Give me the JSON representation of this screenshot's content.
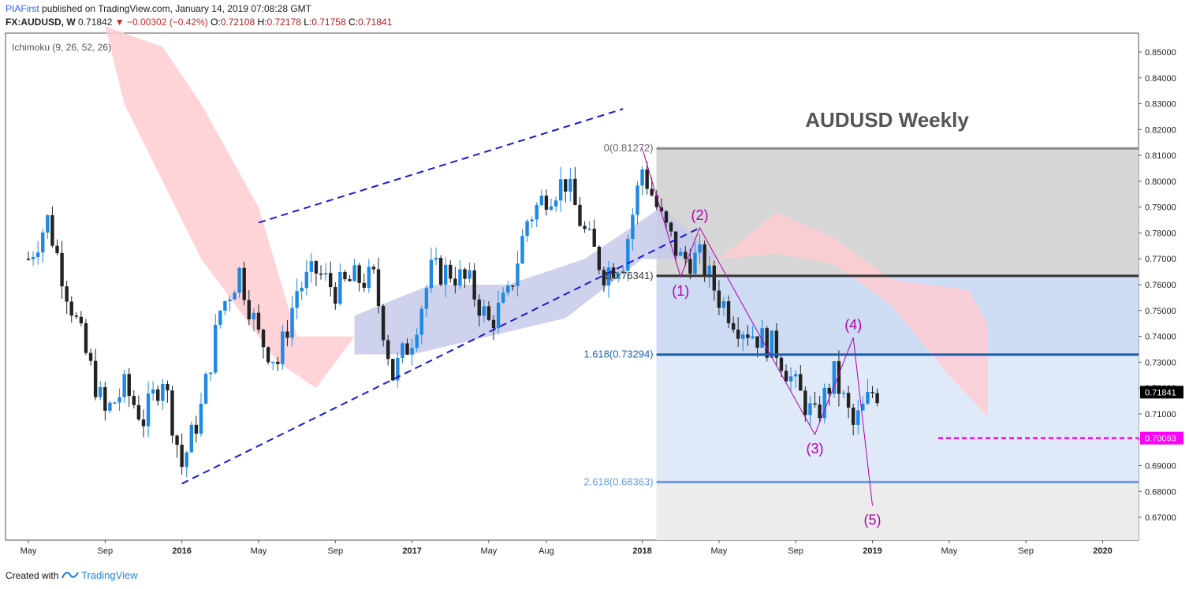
{
  "header": {
    "publisher": "PIAFirst",
    "published_text": "published on TradingView.com, January 14, 2019 07:08:28 GMT",
    "symbol": "FX:AUDUSD, W",
    "last": "0.71842",
    "change": "−0.00302 (−0.42%)",
    "o_label": "O:",
    "o": "0.72108",
    "h_label": "H:",
    "h": "0.72178",
    "l_label": "L:",
    "l": "0.71758",
    "c_label": "C:",
    "c": "0.71841"
  },
  "footer": {
    "created_with": "Created with",
    "brand": "TradingView"
  },
  "colors": {
    "up_candle": "#1e88e5",
    "down_candle": "#222222",
    "channel": "#1a1ad6",
    "wave": "#b000b0",
    "cloud_bear": "#ffcdd2",
    "cloud_bull": "#c5cae9",
    "price_marker": "#000000",
    "target_marker": "#ff00ff"
  },
  "chart_data": {
    "type": "candlestick",
    "title": "AUDUSD Weekly",
    "indicator_label": "Ichimoku (9, 26, 52, 26)",
    "y_ticks": [
      "0.85000",
      "0.84000",
      "0.83000",
      "0.82000",
      "0.81000",
      "0.80000",
      "0.79000",
      "0.78000",
      "0.77000",
      "0.76000",
      "0.75000",
      "0.74000",
      "0.73000",
      "0.72000",
      "0.71000",
      "0.70000",
      "0.69000",
      "0.68000",
      "0.67000"
    ],
    "x_ticks": [
      {
        "label": "May",
        "bold": false,
        "date": "2015-05"
      },
      {
        "label": "Sep",
        "bold": false,
        "date": "2015-09"
      },
      {
        "label": "2016",
        "bold": true,
        "date": "2016-01"
      },
      {
        "label": "May",
        "bold": false,
        "date": "2016-05"
      },
      {
        "label": "Sep",
        "bold": false,
        "date": "2016-09"
      },
      {
        "label": "2017",
        "bold": true,
        "date": "2017-01"
      },
      {
        "label": "May",
        "bold": false,
        "date": "2017-05"
      },
      {
        "label": "Aug",
        "bold": false,
        "date": "2017-08"
      },
      {
        "label": "2018",
        "bold": true,
        "date": "2018-01"
      },
      {
        "label": "May",
        "bold": false,
        "date": "2018-05"
      },
      {
        "label": "Sep",
        "bold": false,
        "date": "2018-09"
      },
      {
        "label": "2019",
        "bold": true,
        "date": "2019-01"
      },
      {
        "label": "May",
        "bold": false,
        "date": "2019-05"
      },
      {
        "label": "Sep",
        "bold": false,
        "date": "2019-09"
      },
      {
        "label": "2020",
        "bold": true,
        "date": "2020-01"
      }
    ],
    "ylim": [
      0.6635,
      0.8553
    ],
    "price_path": [
      [
        "2015-05",
        0.77
      ],
      [
        "2015-06",
        0.785
      ],
      [
        "2015-07",
        0.758
      ],
      [
        "2015-08",
        0.733
      ],
      [
        "2015-09",
        0.71
      ],
      [
        "2015-10",
        0.72
      ],
      [
        "2015-11",
        0.708
      ],
      [
        "2015-12",
        0.725
      ],
      [
        "2016-01",
        0.69
      ],
      [
        "2016-02",
        0.712
      ],
      [
        "2016-03",
        0.75
      ],
      [
        "2016-04",
        0.765
      ],
      [
        "2016-05",
        0.74
      ],
      [
        "2016-06",
        0.73
      ],
      [
        "2016-07",
        0.758
      ],
      [
        "2016-08",
        0.765
      ],
      [
        "2016-09",
        0.758
      ],
      [
        "2016-10",
        0.762
      ],
      [
        "2016-11",
        0.762
      ],
      [
        "2016-12",
        0.725
      ],
      [
        "2017-01",
        0.74
      ],
      [
        "2017-02",
        0.765
      ],
      [
        "2017-03",
        0.765
      ],
      [
        "2017-04",
        0.76
      ],
      [
        "2017-05",
        0.745
      ],
      [
        "2017-06",
        0.755
      ],
      [
        "2017-07",
        0.785
      ],
      [
        "2017-08",
        0.795
      ],
      [
        "2017-09",
        0.8
      ],
      [
        "2017-10",
        0.78
      ],
      [
        "2017-11",
        0.765
      ],
      [
        "2017-12",
        0.77
      ],
      [
        "2018-01",
        0.805
      ],
      [
        "2018-02",
        0.785
      ],
      [
        "2018-03",
        0.77
      ],
      [
        "2018-04",
        0.77
      ],
      [
        "2018-05",
        0.755
      ],
      [
        "2018-06",
        0.745
      ],
      [
        "2018-07",
        0.74
      ],
      [
        "2018-08",
        0.735
      ],
      [
        "2018-09",
        0.72
      ],
      [
        "2018-10",
        0.708
      ],
      [
        "2018-11",
        0.725
      ],
      [
        "2018-12",
        0.705
      ],
      [
        "2019-01",
        0.7184
      ]
    ],
    "last_price": "0.71841",
    "target_price": "0.70063",
    "fib_levels": [
      {
        "label": "0(0.81272)",
        "value": 0.81272
      },
      {
        "label": "1(0.76341)",
        "value": 0.76341
      },
      {
        "label": "1.618(0.73294)",
        "value": 0.73294
      },
      {
        "label": "2.618(0.68363)",
        "value": 0.68363
      }
    ],
    "waves": [
      {
        "label": "(1)",
        "date": "2018-03",
        "value": 0.763
      },
      {
        "label": "(2)",
        "date": "2018-04",
        "value": 0.782
      },
      {
        "label": "(3)",
        "date": "2018-10",
        "value": 0.702
      },
      {
        "label": "(4)",
        "date": "2018-12",
        "value": 0.7395
      },
      {
        "label": "(5)",
        "date": "2019-01",
        "value": 0.6745
      }
    ],
    "channel": {
      "upper": [
        [
          "2016-05",
          0.784
        ],
        [
          "2017-12",
          0.828
        ]
      ],
      "lower": [
        [
          "2016-01",
          0.683
        ],
        [
          "2018-04",
          0.782
        ]
      ]
    }
  }
}
